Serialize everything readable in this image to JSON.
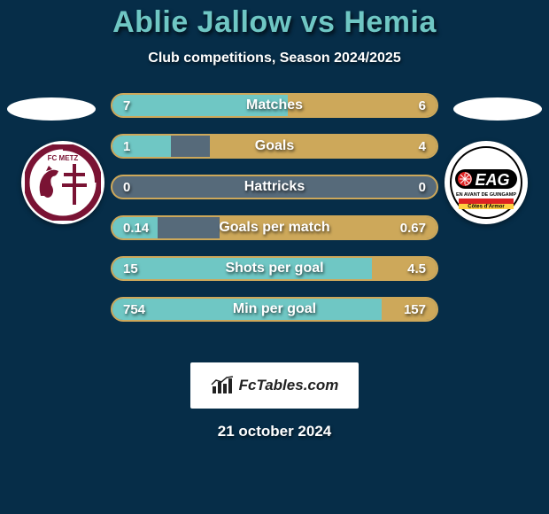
{
  "background_color": "#062d48",
  "title": "Ablie Jallow vs Hemia",
  "title_color": "#6fc7c4",
  "subtitle": "Club competitions, Season 2024/2025",
  "date": "21 october 2024",
  "branding_text": "FcTables.com",
  "bar": {
    "track_color": "#566a7a",
    "border_color": "#cda85a",
    "fill_left_color": "#6fc7c4",
    "fill_right_color": "#cda85a",
    "font_size": 15,
    "label_font_size": 16
  },
  "left_club": {
    "badge_bg": "#ffffff",
    "ring": "#7a1334",
    "inner": "#7a1334",
    "text": "FC METZ"
  },
  "right_club": {
    "badge_bg": "#ffffff",
    "pill_bg": "#000000",
    "pill_text": "EAG",
    "accent": "#d22",
    "strip1": "#d22",
    "strip2": "#ffd040",
    "strip_label": "Côtes d'Armor",
    "subtext": "EN AVANT DE GUINGAMP"
  },
  "stats": [
    {
      "label": "Matches",
      "left_val": "7",
      "right_val": "6",
      "left_pct": 54,
      "right_pct": 46
    },
    {
      "label": "Goals",
      "left_val": "1",
      "right_val": "4",
      "left_pct": 18,
      "right_pct": 70
    },
    {
      "label": "Hattricks",
      "left_val": "0",
      "right_val": "0",
      "left_pct": 0,
      "right_pct": 0
    },
    {
      "label": "Goals per match",
      "left_val": "0.14",
      "right_val": "0.67",
      "left_pct": 14,
      "right_pct": 67
    },
    {
      "label": "Shots per goal",
      "left_val": "15",
      "right_val": "4.5",
      "left_pct": 80,
      "right_pct": 20
    },
    {
      "label": "Min per goal",
      "left_val": "754",
      "right_val": "157",
      "left_pct": 83,
      "right_pct": 17
    }
  ]
}
